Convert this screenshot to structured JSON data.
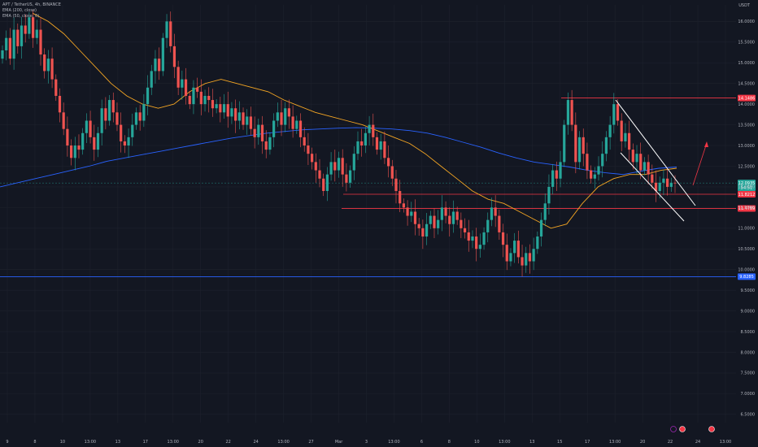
{
  "header": {
    "symbol_line": "APT / TetherUS, 4h, BINANCE",
    "ema1_line": "EMA (200, close)",
    "ema2_line": "EMA (50, close, 0)",
    "currency": "USDT"
  },
  "colors": {
    "background": "#131722",
    "up": "#26a69a",
    "down": "#ef5350",
    "ema200": "#2962ff",
    "ema50": "#f5a623",
    "resistance": "#f23645",
    "support_blue": "#2962ff",
    "channel": "#ffffff"
  },
  "chart_data": {
    "type": "candlestick",
    "x_tick_labels": [
      "9",
      "8",
      "10",
      "13:00",
      "13",
      "17",
      "13:00",
      "20",
      "22",
      "24",
      "13:00",
      "27",
      "Mar",
      "3",
      "13:00",
      "6",
      "8",
      "10",
      "13:00",
      "13",
      "15",
      "17",
      "13:00",
      "20",
      "22",
      "24",
      "13:00"
    ],
    "y_tick_labels": [
      "16.0000",
      "15.5000",
      "15.0000",
      "14.5000",
      "14.0000",
      "13.5000",
      "13.0000",
      "12.5000",
      "12.0000",
      "11.5000",
      "11.0000",
      "10.5000",
      "10.0000",
      "9.5000",
      "9.0000",
      "8.5000",
      "8.0000",
      "7.5000",
      "7.0000",
      "6.5000"
    ],
    "ylim": [
      6.3,
      16.4
    ],
    "price_levels": [
      {
        "label": "14.1486",
        "value": 14.1486,
        "color": "#f23645"
      },
      {
        "label": "12.0935",
        "value": 12.0935,
        "color": "#26a69a"
      },
      {
        "label": "54:51",
        "value": 11.98,
        "color": "#26a69a"
      },
      {
        "label": "11.8212",
        "value": 11.8212,
        "color": "#f23645"
      },
      {
        "label": "11.4789",
        "value": 11.4789,
        "color": "#f23645"
      },
      {
        "label": "9.8285",
        "value": 9.8285,
        "color": "#2962ff"
      }
    ],
    "closes": [
      15.3,
      15.6,
      15.1,
      15.8,
      15.4,
      15.9,
      15.7,
      16.1,
      15.6,
      15.8,
      15.2,
      14.8,
      15.1,
      14.6,
      14.2,
      13.8,
      13.4,
      13.0,
      12.7,
      13.0,
      12.9,
      13.3,
      13.6,
      13.2,
      12.9,
      13.3,
      13.9,
      13.6,
      14.1,
      13.8,
      13.5,
      13.1,
      13.0,
      13.2,
      13.5,
      13.8,
      13.6,
      14.0,
      14.4,
      14.8,
      15.1,
      14.8,
      15.6,
      16.0,
      15.4,
      14.9,
      14.4,
      14.6,
      14.2,
      14.0,
      14.4,
      14.3,
      14.0,
      14.2,
      14.1,
      13.9,
      14.0,
      13.8,
      14.0,
      13.7,
      13.9,
      13.6,
      13.8,
      13.5,
      13.7,
      13.4,
      13.2,
      13.5,
      13.1,
      12.9,
      13.2,
      13.6,
      13.8,
      13.5,
      13.9,
      13.7,
      13.4,
      13.6,
      13.2,
      13.0,
      12.8,
      12.6,
      12.4,
      12.2,
      11.9,
      12.3,
      12.6,
      12.4,
      12.7,
      12.3,
      12.1,
      12.4,
      12.8,
      13.1,
      13.0,
      13.3,
      13.5,
      13.2,
      12.9,
      13.1,
      12.7,
      12.5,
      12.2,
      11.9,
      11.6,
      11.5,
      11.3,
      11.4,
      11.1,
      11.0,
      10.8,
      11.1,
      11.3,
      11.0,
      11.2,
      11.5,
      11.3,
      11.1,
      11.4,
      11.2,
      11.0,
      10.9,
      10.7,
      10.8,
      10.5,
      10.6,
      10.9,
      11.2,
      11.5,
      11.3,
      10.9,
      10.6,
      10.2,
      10.4,
      10.7,
      10.3,
      10.1,
      10.4,
      10.2,
      10.5,
      10.8,
      11.2,
      11.6,
      12.0,
      12.4,
      12.2,
      12.6,
      13.5,
      14.1,
      13.5,
      12.6,
      13.2,
      12.8,
      12.4,
      12.2,
      12.3,
      12.5,
      12.8,
      13.2,
      13.5,
      14.0,
      13.6,
      13.1,
      13.3,
      12.9,
      12.6,
      12.8,
      12.4,
      12.6,
      12.3,
      12.1,
      11.9,
      12.1,
      12.2,
      12.0,
      12.1,
      12.09
    ],
    "ema200": [
      12.0,
      12.1,
      12.2,
      12.3,
      12.4,
      12.5,
      12.62,
      12.7,
      12.78,
      12.86,
      12.94,
      13.02,
      13.1,
      13.18,
      13.24,
      13.3,
      13.34,
      13.38,
      13.4,
      13.42,
      13.43,
      13.42,
      13.4,
      13.36,
      13.3,
      13.2,
      13.08,
      12.96,
      12.82,
      12.7,
      12.6,
      12.54,
      12.48,
      12.4,
      12.34,
      12.3,
      12.38,
      12.45,
      12.48
    ],
    "ema50": [
      16.2,
      16.0,
      15.7,
      15.3,
      14.9,
      14.5,
      14.2,
      14.0,
      13.9,
      14.0,
      14.3,
      14.5,
      14.6,
      14.5,
      14.4,
      14.3,
      14.1,
      13.95,
      13.8,
      13.7,
      13.6,
      13.5,
      13.35,
      13.2,
      13.05,
      12.8,
      12.5,
      12.2,
      11.9,
      11.7,
      11.6,
      11.4,
      11.2,
      11.0,
      11.1,
      11.6,
      12.0,
      12.2,
      12.3,
      12.3,
      12.4,
      12.45
    ]
  }
}
